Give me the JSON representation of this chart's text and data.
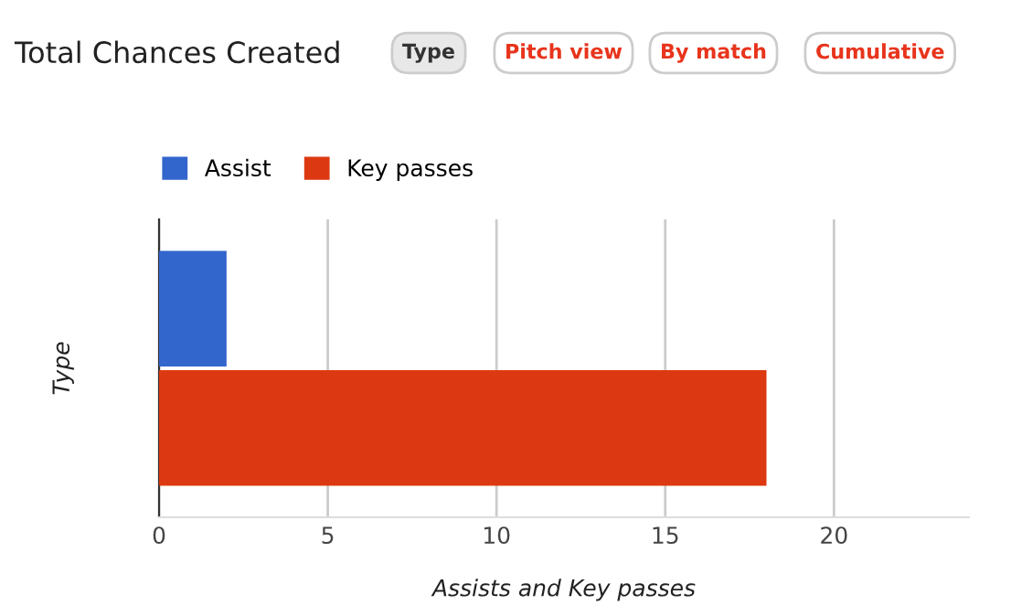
{
  "chart_data": {
    "type": "bar",
    "orientation": "horizontal",
    "title": "Total Chances Created",
    "categories": [
      null
    ],
    "series": [
      {
        "name": "Assist",
        "color": "#3366cc",
        "values": [
          2
        ]
      },
      {
        "name": "Key passes",
        "color": "#dc3912",
        "values": [
          18
        ]
      }
    ],
    "xlim": [
      0,
      24
    ],
    "xticks": [
      0,
      5,
      10,
      15,
      20
    ],
    "grid": "x",
    "legend": "top left",
    "xlabel": "Assists and Key passes",
    "ylabel": "Type",
    "annotations": [
      "Type",
      "Pitch view",
      "By match",
      "Cumulative"
    ]
  }
}
